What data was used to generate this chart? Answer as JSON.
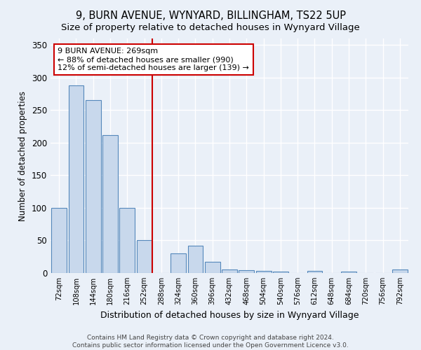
{
  "title1": "9, BURN AVENUE, WYNYARD, BILLINGHAM, TS22 5UP",
  "title2": "Size of property relative to detached houses in Wynyard Village",
  "xlabel": "Distribution of detached houses by size in Wynyard Village",
  "ylabel": "Number of detached properties",
  "bin_labels": [
    "72sqm",
    "108sqm",
    "144sqm",
    "180sqm",
    "216sqm",
    "252sqm",
    "288sqm",
    "324sqm",
    "360sqm",
    "396sqm",
    "432sqm",
    "468sqm",
    "504sqm",
    "540sqm",
    "576sqm",
    "612sqm",
    "648sqm",
    "684sqm",
    "720sqm",
    "756sqm",
    "792sqm"
  ],
  "bar_values": [
    100,
    288,
    265,
    212,
    100,
    50,
    0,
    30,
    42,
    17,
    5,
    4,
    3,
    2,
    0,
    3,
    0,
    2,
    0,
    0,
    5
  ],
  "bar_color": "#c8d8ec",
  "bar_edge_color": "#5588bb",
  "marker_color": "#cc0000",
  "annotation_line1": "9 BURN AVENUE: 269sqm",
  "annotation_line2": "← 88% of detached houses are smaller (990)",
  "annotation_line3": "12% of semi-detached houses are larger (139) →",
  "ylim": [
    0,
    360
  ],
  "yticks": [
    0,
    50,
    100,
    150,
    200,
    250,
    300,
    350
  ],
  "footer1": "Contains HM Land Registry data © Crown copyright and database right 2024.",
  "footer2": "Contains public sector information licensed under the Open Government Licence v3.0.",
  "bg_color": "#eaf0f8",
  "grid_color": "#d0dce8",
  "title1_fontsize": 10.5,
  "title2_fontsize": 9.5
}
